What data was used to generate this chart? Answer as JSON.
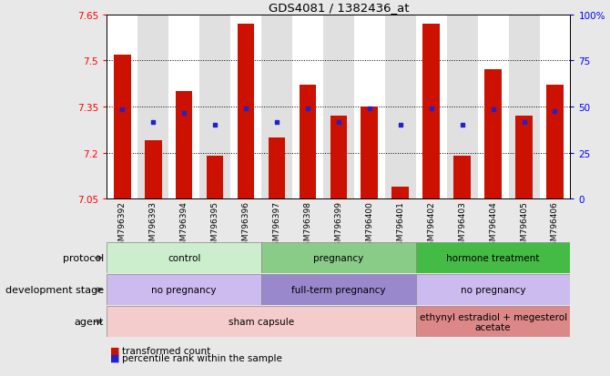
{
  "title": "GDS4081 / 1382436_at",
  "samples": [
    "GSM796392",
    "GSM796393",
    "GSM796394",
    "GSM796395",
    "GSM796396",
    "GSM796397",
    "GSM796398",
    "GSM796399",
    "GSM796400",
    "GSM796401",
    "GSM796402",
    "GSM796403",
    "GSM796404",
    "GSM796405",
    "GSM796406"
  ],
  "bar_values": [
    7.52,
    7.24,
    7.4,
    7.19,
    7.62,
    7.25,
    7.42,
    7.32,
    7.35,
    7.09,
    7.62,
    7.19,
    7.47,
    7.32,
    7.42
  ],
  "dot_values": [
    7.34,
    7.3,
    7.33,
    7.29,
    7.345,
    7.3,
    7.345,
    7.3,
    7.345,
    7.29,
    7.345,
    7.29,
    7.34,
    7.3,
    7.335
  ],
  "ymin": 7.05,
  "ymax": 7.65,
  "yticks": [
    7.05,
    7.2,
    7.35,
    7.5,
    7.65
  ],
  "right_yticks": [
    0,
    25,
    50,
    75,
    100
  ],
  "bar_color": "#cc1100",
  "dot_color": "#2222cc",
  "bg_color": "#e8e8e8",
  "plot_bg": "#ffffff",
  "protocol_groups": [
    {
      "label": "control",
      "start": 0,
      "end": 5,
      "color": "#cceecc"
    },
    {
      "label": "pregnancy",
      "start": 5,
      "end": 10,
      "color": "#88cc88"
    },
    {
      "label": "hormone treatment",
      "start": 10,
      "end": 15,
      "color": "#44bb44"
    }
  ],
  "dev_stage_groups": [
    {
      "label": "no pregnancy",
      "start": 0,
      "end": 5,
      "color": "#ccbbee"
    },
    {
      "label": "full-term pregnancy",
      "start": 5,
      "end": 10,
      "color": "#9988cc"
    },
    {
      "label": "no pregnancy",
      "start": 10,
      "end": 15,
      "color": "#ccbbee"
    }
  ],
  "agent_groups": [
    {
      "label": "sham capsule",
      "start": 0,
      "end": 10,
      "color": "#f5cccc"
    },
    {
      "label": "ethynyl estradiol + megesterol\nacetate",
      "start": 10,
      "end": 15,
      "color": "#dd8888"
    }
  ],
  "row_labels": [
    "protocol",
    "development stage",
    "agent"
  ],
  "legend_bar_label": "transformed count",
  "legend_dot_label": "percentile rank within the sample"
}
